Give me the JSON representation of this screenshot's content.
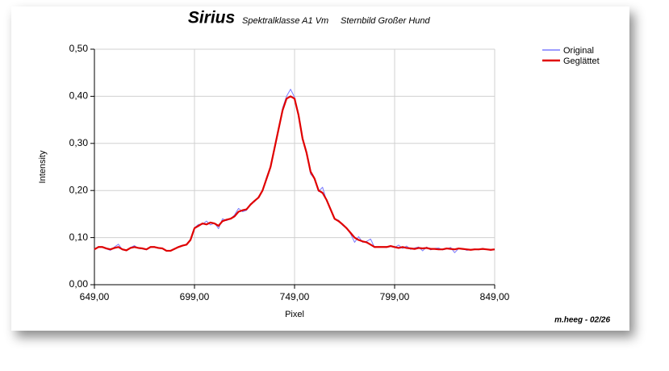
{
  "chart_data": {
    "type": "line",
    "title": "Sirius",
    "subtitle": "Spektralklasse A1 Vm",
    "subtitle2": "Sternbild Großer Hund",
    "xlabel": "Pixel",
    "ylabel": "Intensity",
    "footer": "m.heeg - 02/26",
    "grid": true,
    "legend": "top-right",
    "xlim": [
      649,
      849
    ],
    "xticks": [
      {
        "value": 649,
        "label": "649,00"
      },
      {
        "value": 699,
        "label": "699,00"
      },
      {
        "value": 749,
        "label": "749,00"
      },
      {
        "value": 799,
        "label": "799,00"
      },
      {
        "value": 849,
        "label": "849,00"
      }
    ],
    "ylim": [
      0,
      0.5
    ],
    "yticks": [
      {
        "value": 0,
        "label": "0,00"
      },
      {
        "value": 0.1,
        "label": "0,10"
      },
      {
        "value": 0.2,
        "label": "0,20"
      },
      {
        "value": 0.3,
        "label": "0,30"
      },
      {
        "value": 0.4,
        "label": "0,40"
      },
      {
        "value": 0.5,
        "label": "0,50"
      }
    ],
    "x": [
      649,
      651,
      653,
      655,
      657,
      659,
      661,
      663,
      665,
      667,
      669,
      671,
      673,
      675,
      677,
      679,
      681,
      683,
      685,
      687,
      689,
      691,
      693,
      695,
      697,
      699,
      701,
      703,
      705,
      707,
      709,
      711,
      713,
      715,
      717,
      719,
      721,
      723,
      725,
      727,
      729,
      731,
      733,
      735,
      737,
      739,
      741,
      743,
      745,
      747,
      749,
      751,
      753,
      755,
      757,
      759,
      761,
      763,
      765,
      767,
      769,
      771,
      773,
      775,
      777,
      779,
      781,
      783,
      785,
      787,
      789,
      791,
      793,
      795,
      797,
      799,
      801,
      803,
      805,
      807,
      809,
      811,
      813,
      815,
      817,
      819,
      821,
      823,
      825,
      827,
      829,
      831,
      833,
      835,
      837,
      839,
      841,
      843,
      845,
      847,
      849
    ],
    "series": [
      {
        "name": "Original",
        "color": "#7b7bff",
        "values": [
          0.074,
          0.081,
          0.079,
          0.076,
          0.073,
          0.08,
          0.086,
          0.074,
          0.072,
          0.079,
          0.083,
          0.077,
          0.076,
          0.074,
          0.079,
          0.081,
          0.077,
          0.078,
          0.071,
          0.073,
          0.075,
          0.081,
          0.084,
          0.084,
          0.097,
          0.121,
          0.128,
          0.128,
          0.135,
          0.127,
          0.131,
          0.119,
          0.14,
          0.136,
          0.14,
          0.148,
          0.162,
          0.155,
          0.158,
          0.172,
          0.176,
          0.187,
          0.2,
          0.228,
          0.25,
          0.292,
          0.33,
          0.375,
          0.4,
          0.415,
          0.398,
          0.36,
          0.308,
          0.282,
          0.235,
          0.225,
          0.198,
          0.207,
          0.178,
          0.16,
          0.139,
          0.137,
          0.126,
          0.12,
          0.108,
          0.09,
          0.102,
          0.09,
          0.092,
          0.097,
          0.079,
          0.081,
          0.08,
          0.079,
          0.081,
          0.079,
          0.084,
          0.077,
          0.082,
          0.075,
          0.078,
          0.08,
          0.072,
          0.08,
          0.074,
          0.077,
          0.078,
          0.074,
          0.076,
          0.079,
          0.068,
          0.077,
          0.077,
          0.073,
          0.074,
          0.076,
          0.074,
          0.077,
          0.075,
          0.073,
          0.075
        ]
      },
      {
        "name": "Geglättet",
        "color": "#e00000",
        "values": [
          0.075,
          0.08,
          0.08,
          0.077,
          0.075,
          0.078,
          0.08,
          0.075,
          0.073,
          0.078,
          0.08,
          0.078,
          0.077,
          0.075,
          0.08,
          0.08,
          0.078,
          0.077,
          0.072,
          0.072,
          0.076,
          0.08,
          0.083,
          0.085,
          0.095,
          0.12,
          0.125,
          0.13,
          0.128,
          0.132,
          0.13,
          0.125,
          0.135,
          0.138,
          0.14,
          0.145,
          0.155,
          0.158,
          0.16,
          0.17,
          0.178,
          0.185,
          0.2,
          0.225,
          0.25,
          0.29,
          0.33,
          0.37,
          0.395,
          0.4,
          0.395,
          0.36,
          0.31,
          0.28,
          0.24,
          0.225,
          0.2,
          0.195,
          0.18,
          0.16,
          0.14,
          0.135,
          0.128,
          0.12,
          0.11,
          0.1,
          0.095,
          0.092,
          0.09,
          0.085,
          0.08,
          0.08,
          0.08,
          0.08,
          0.082,
          0.08,
          0.078,
          0.08,
          0.078,
          0.077,
          0.076,
          0.078,
          0.077,
          0.078,
          0.076,
          0.076,
          0.075,
          0.075,
          0.077,
          0.076,
          0.075,
          0.077,
          0.076,
          0.075,
          0.074,
          0.075,
          0.075,
          0.076,
          0.075,
          0.074,
          0.075
        ]
      }
    ]
  }
}
